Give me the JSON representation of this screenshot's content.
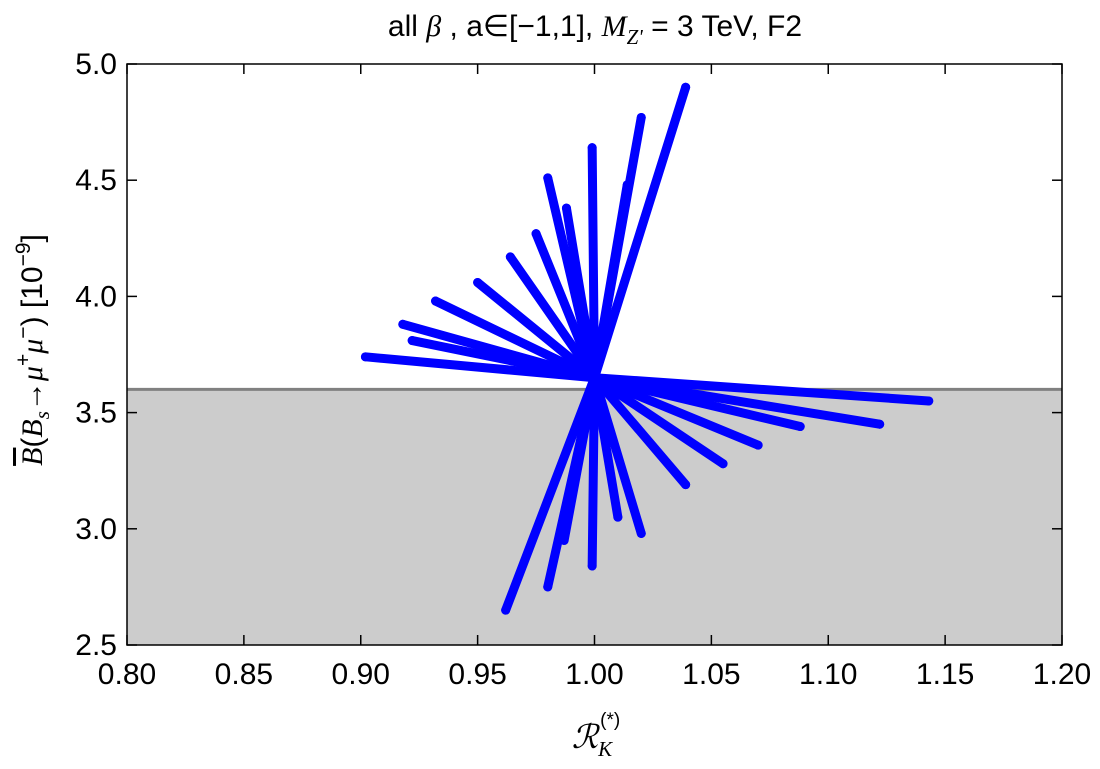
{
  "chart_data": {
    "type": "line",
    "title_parts": {
      "p1": "all ",
      "beta": "β",
      "p2": " , a∈[−1,1],  ",
      "m": "M",
      "msub": "Z'",
      "p3": " = 3 TeV, F2"
    },
    "xlabel_parts": {
      "main": "ℛ",
      "sub": "K",
      "sup": "(*)"
    },
    "ylabel_parts": {
      "b": "B",
      "open": "(",
      "bs": "B",
      "bs_sub": "s",
      "arrow": "→",
      "mu1": "μ",
      "mu1_sup": "+",
      "mu2": "μ",
      "mu2_sup": "−",
      "close": ") [10",
      "exp": "−9",
      "end": "]"
    },
    "xlim": [
      0.8,
      1.2
    ],
    "ylim": [
      2.5,
      5.0
    ],
    "x_ticks": [
      "0.80",
      "0.85",
      "0.90",
      "0.95",
      "1.00",
      "1.05",
      "1.10",
      "1.15",
      "1.20"
    ],
    "y_ticks": [
      "2.5",
      "3.0",
      "3.5",
      "4.0",
      "4.5",
      "5.0"
    ],
    "grid": false,
    "shaded_region": {
      "y_from": 2.5,
      "y_to": 3.6,
      "color": "#cccccc"
    },
    "reference_line": {
      "y": 3.6,
      "color": "#808080"
    },
    "series_color": "#0000ff",
    "center": {
      "x": 1.0,
      "y": 3.65
    },
    "series": [
      {
        "x": [
          1.0,
          1.039
        ],
        "y": [
          3.65,
          4.9
        ]
      },
      {
        "x": [
          1.0,
          1.02
        ],
        "y": [
          3.65,
          4.77
        ]
      },
      {
        "x": [
          1.0,
          0.999
        ],
        "y": [
          3.65,
          4.64
        ]
      },
      {
        "x": [
          1.0,
          1.014
        ],
        "y": [
          3.65,
          4.48
        ]
      },
      {
        "x": [
          1.0,
          0.98
        ],
        "y": [
          3.65,
          4.51
        ]
      },
      {
        "x": [
          1.0,
          0.988
        ],
        "y": [
          3.65,
          4.38
        ]
      },
      {
        "x": [
          1.0,
          0.975
        ],
        "y": [
          3.65,
          4.27
        ]
      },
      {
        "x": [
          1.0,
          0.964
        ],
        "y": [
          3.65,
          4.17
        ]
      },
      {
        "x": [
          1.0,
          0.95
        ],
        "y": [
          3.65,
          4.06
        ]
      },
      {
        "x": [
          1.0,
          0.932
        ],
        "y": [
          3.65,
          3.98
        ]
      },
      {
        "x": [
          1.0,
          0.918
        ],
        "y": [
          3.65,
          3.88
        ]
      },
      {
        "x": [
          1.0,
          0.922
        ],
        "y": [
          3.65,
          3.81
        ]
      },
      {
        "x": [
          1.0,
          0.902
        ],
        "y": [
          3.65,
          3.74
        ]
      },
      {
        "x": [
          1.0,
          1.143
        ],
        "y": [
          3.65,
          3.55
        ]
      },
      {
        "x": [
          1.0,
          1.122
        ],
        "y": [
          3.65,
          3.45
        ]
      },
      {
        "x": [
          1.0,
          1.088
        ],
        "y": [
          3.65,
          3.44
        ]
      },
      {
        "x": [
          1.0,
          1.07
        ],
        "y": [
          3.65,
          3.36
        ]
      },
      {
        "x": [
          1.0,
          1.055
        ],
        "y": [
          3.65,
          3.28
        ]
      },
      {
        "x": [
          1.0,
          1.039
        ],
        "y": [
          3.65,
          3.19
        ]
      },
      {
        "x": [
          1.0,
          1.02
        ],
        "y": [
          3.65,
          2.98
        ]
      },
      {
        "x": [
          1.0,
          1.01
        ],
        "y": [
          3.65,
          3.05
        ]
      },
      {
        "x": [
          1.0,
          0.999
        ],
        "y": [
          3.65,
          2.84
        ]
      },
      {
        "x": [
          1.0,
          0.987
        ],
        "y": [
          3.65,
          2.95
        ]
      },
      {
        "x": [
          1.0,
          0.98
        ],
        "y": [
          3.65,
          2.75
        ]
      },
      {
        "x": [
          1.0,
          0.962
        ],
        "y": [
          3.65,
          2.65
        ]
      }
    ]
  }
}
